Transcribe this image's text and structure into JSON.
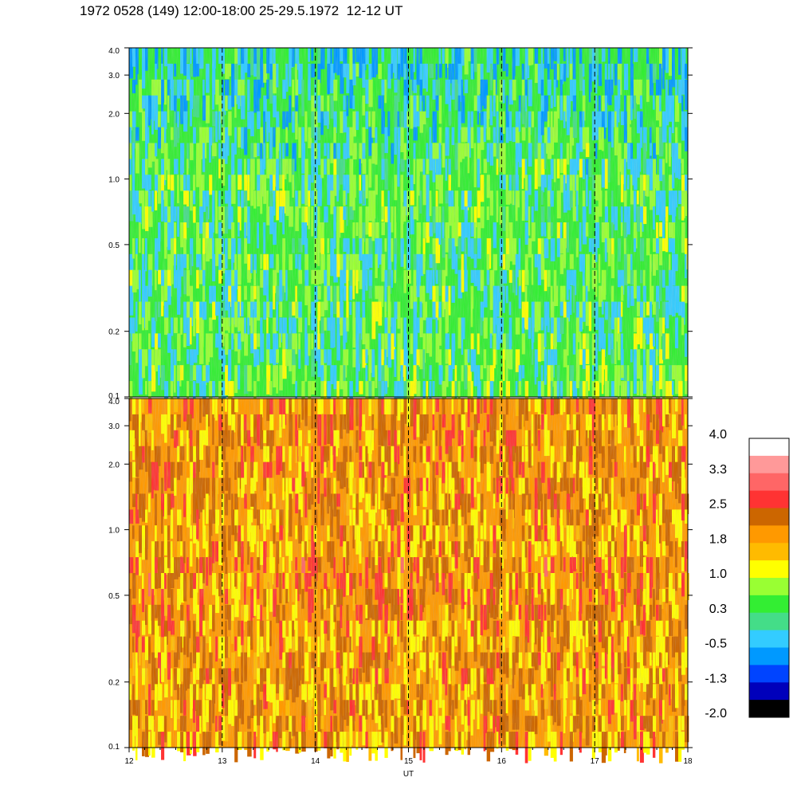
{
  "title": "1972 0528 (149) 12:00-18:00 25-29.5.1972  12-12 UT",
  "chart_data": [
    {
      "type": "heatmap",
      "panel": "upper",
      "title": "",
      "x": {
        "label": "",
        "range": [
          12,
          18
        ]
      },
      "y": {
        "label": "",
        "scale": "log",
        "range": [
          0.1,
          4.0
        ],
        "ticks": [
          0.1,
          0.2,
          0.5,
          1.0,
          2.0,
          3.0,
          4.0
        ],
        "tick_labels": [
          "0.1",
          "0.2",
          "0.5",
          "1.0",
          "2.0",
          "3.0",
          "4.0"
        ]
      },
      "dominant_level": 0.3,
      "dashed_hour_markers": [
        13,
        14,
        15,
        16,
        17
      ]
    },
    {
      "type": "heatmap",
      "panel": "lower",
      "title": "",
      "x": {
        "label": "UT",
        "range": [
          12,
          18
        ],
        "ticks": [
          12,
          13,
          14,
          15,
          16,
          17,
          18
        ],
        "tick_labels": [
          "12",
          "13",
          "14",
          "15",
          "16",
          "17",
          "18"
        ]
      },
      "y": {
        "label": "",
        "scale": "log",
        "range": [
          0.1,
          4.0
        ],
        "ticks": [
          0.1,
          0.2,
          0.5,
          1.0,
          2.0,
          3.0,
          4.0
        ],
        "tick_labels": [
          "0.1",
          "0.2",
          "0.5",
          "1.0",
          "2.0",
          "3.0",
          "4.0"
        ]
      },
      "dominant_level": 1.8,
      "dashed_hour_markers": [
        13,
        14,
        15,
        16,
        17
      ]
    }
  ],
  "colorbar": {
    "labels": [
      "4.0",
      "3.3",
      "2.5",
      "1.8",
      "1.0",
      "0.3",
      "-0.5",
      "-1.3",
      "-2.0"
    ],
    "colors": [
      "#ffffff",
      "#ff9999",
      "#ff6666",
      "#ff3333",
      "#cc6600",
      "#ff9900",
      "#ffbb00",
      "#ffff00",
      "#99ff33",
      "#33ee33",
      "#44dd88",
      "#33ccff",
      "#0099ff",
      "#0044ff",
      "#0000bb",
      "#000000"
    ]
  }
}
